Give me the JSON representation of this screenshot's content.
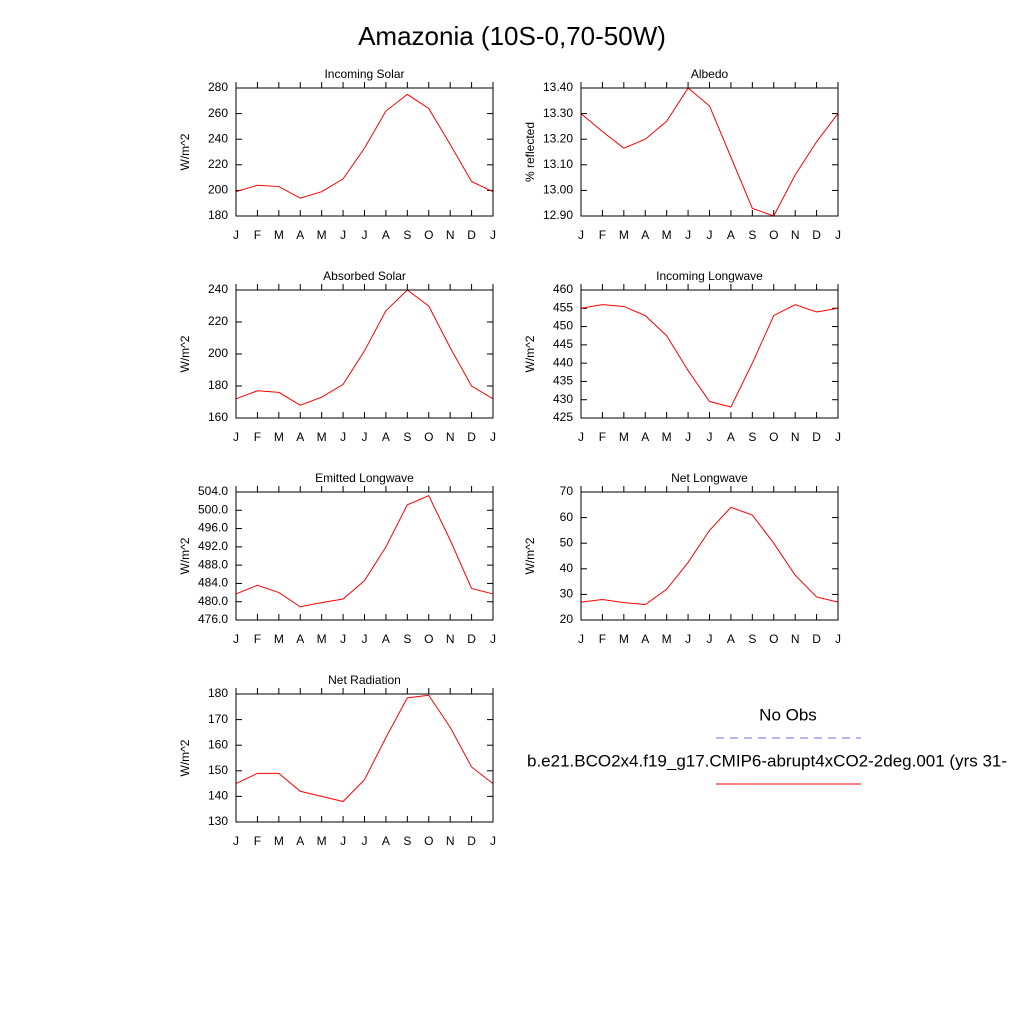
{
  "title": "Amazonia (10S-0,70-50W)",
  "legend": [
    {
      "name": "No Obs",
      "color": "#6a6aff",
      "dashed": true
    },
    {
      "name": "b.e21.BCO2x4.f19_g17.CMIP6-abrupt4xCO2-2deg.001 (yrs 31-",
      "color": "#ff0000",
      "dashed": false
    }
  ],
  "chart_data": [
    {
      "type": "line",
      "title": "Incoming Solar",
      "ylabel": "W/m^2",
      "categories": [
        "J",
        "F",
        "M",
        "A",
        "M",
        "J",
        "J",
        "A",
        "S",
        "O",
        "N",
        "D",
        "J"
      ],
      "values": [
        199,
        204,
        203,
        194,
        199,
        209,
        233,
        262,
        275,
        264,
        236,
        207,
        199
      ],
      "color": "#ff0000",
      "ylim": [
        180,
        280
      ],
      "yticks": [
        180,
        200,
        220,
        240,
        260,
        280
      ]
    },
    {
      "type": "line",
      "title": "Albedo",
      "ylabel": "% reflected",
      "categories": [
        "J",
        "F",
        "M",
        "A",
        "M",
        "J",
        "J",
        "A",
        "S",
        "O",
        "N",
        "D",
        "J"
      ],
      "values": [
        13.3,
        13.23,
        13.165,
        13.2,
        13.27,
        13.4,
        13.33,
        13.13,
        12.93,
        12.9,
        13.06,
        13.19,
        13.3
      ],
      "color": "#ff0000",
      "ylim": [
        12.9,
        13.4
      ],
      "yticks": [
        {
          "value": 12.9,
          "label": "12.90"
        },
        {
          "value": 13.0,
          "label": "13.00"
        },
        {
          "value": 13.1,
          "label": "13.10"
        },
        {
          "value": 13.2,
          "label": "13.20"
        },
        {
          "value": 13.3,
          "label": "13.30"
        },
        {
          "value": 13.4,
          "label": "13.40"
        }
      ]
    },
    {
      "type": "line",
      "title": "Absorbed Solar",
      "ylabel": "W/m^2",
      "categories": [
        "J",
        "F",
        "M",
        "A",
        "M",
        "J",
        "J",
        "A",
        "S",
        "O",
        "N",
        "D",
        "J"
      ],
      "values": [
        172,
        177,
        176,
        168,
        173,
        181,
        202,
        227,
        240,
        230,
        204,
        180,
        172
      ],
      "color": "#ff0000",
      "ylim": [
        160,
        240
      ],
      "yticks": [
        160,
        180,
        200,
        220,
        240
      ]
    },
    {
      "type": "line",
      "title": "Incoming Longwave",
      "ylabel": "W/m^2",
      "categories": [
        "J",
        "F",
        "M",
        "A",
        "M",
        "J",
        "J",
        "A",
        "S",
        "O",
        "N",
        "D",
        "J"
      ],
      "values": [
        455,
        456,
        455.5,
        453,
        447.5,
        438,
        429.5,
        428,
        440,
        453,
        456,
        454,
        455
      ],
      "color": "#ff0000",
      "ylim": [
        425,
        460
      ],
      "yticks": [
        425,
        430,
        435,
        440,
        445,
        450,
        455,
        460
      ]
    },
    {
      "type": "line",
      "title": "Emitted Longwave",
      "ylabel": "W/m^2",
      "categories": [
        "J",
        "F",
        "M",
        "A",
        "M",
        "J",
        "J",
        "A",
        "S",
        "O",
        "N",
        "D",
        "J"
      ],
      "values": [
        481.7,
        483.6,
        482,
        478.9,
        479.8,
        480.6,
        484.6,
        492,
        501.2,
        503.2,
        493.5,
        482.9,
        481.7
      ],
      "color": "#ff0000",
      "ylim": [
        476,
        504
      ],
      "yticks": [
        {
          "value": 476,
          "label": "476.0"
        },
        {
          "value": 480,
          "label": "480.0"
        },
        {
          "value": 484,
          "label": "484.0"
        },
        {
          "value": 488,
          "label": "488.0"
        },
        {
          "value": 492,
          "label": "492.0"
        },
        {
          "value": 496,
          "label": "496.0"
        },
        {
          "value": 500,
          "label": "500.0"
        },
        {
          "value": 504,
          "label": "504.0"
        }
      ]
    },
    {
      "type": "line",
      "title": "Net Longwave",
      "ylabel": "W/m^2",
      "categories": [
        "J",
        "F",
        "M",
        "A",
        "M",
        "J",
        "J",
        "A",
        "S",
        "O",
        "N",
        "D",
        "J"
      ],
      "values": [
        27,
        28,
        26.8,
        26,
        32,
        42.5,
        55,
        64,
        61,
        50,
        37.5,
        29,
        27
      ],
      "color": "#ff0000",
      "ylim": [
        20,
        70
      ],
      "yticks": [
        20,
        30,
        40,
        50,
        60,
        70
      ]
    },
    {
      "type": "line",
      "title": "Net Radiation",
      "ylabel": "W/m^2",
      "categories": [
        "J",
        "F",
        "M",
        "A",
        "M",
        "J",
        "J",
        "A",
        "S",
        "O",
        "N",
        "D",
        "J"
      ],
      "values": [
        145,
        149,
        149,
        142,
        140,
        138,
        146.5,
        163,
        178.5,
        179.5,
        167,
        151.5,
        145
      ],
      "color": "#ff0000",
      "ylim": [
        130,
        180
      ],
      "yticks": [
        130,
        140,
        150,
        160,
        170,
        180
      ]
    }
  ]
}
